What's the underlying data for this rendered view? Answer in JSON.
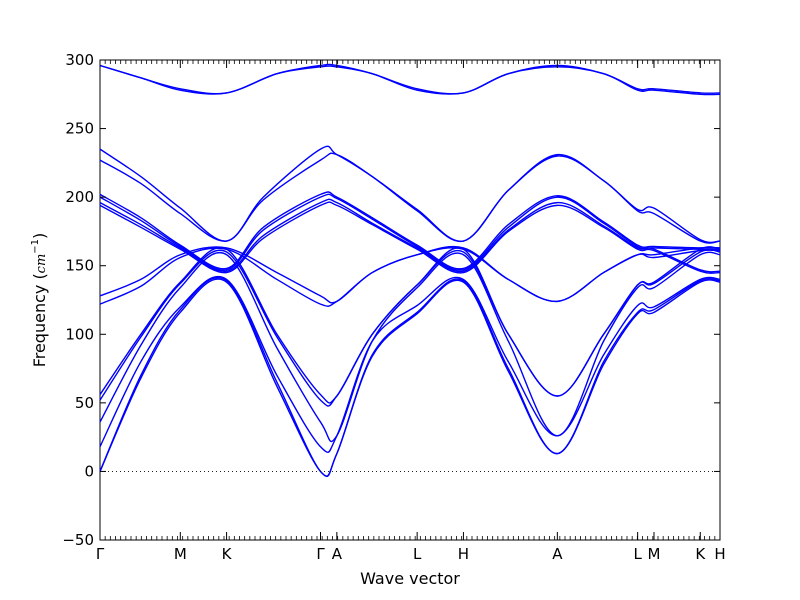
{
  "chart_data": {
    "type": "line",
    "xlabel": "Wave vector",
    "ylabel": {
      "main": "Frequency (",
      "unit": "cm",
      "exponent": "−1",
      "close": ")"
    },
    "ylim": [
      -50,
      300
    ],
    "yticks": [
      -50,
      0,
      50,
      100,
      150,
      200,
      250,
      300
    ],
    "ytick_labels": [
      "−50",
      "0",
      "50",
      "100",
      "150",
      "200",
      "250",
      "300"
    ],
    "x_range": [
      0,
      4.555
    ],
    "high_symmetry_points": [
      {
        "label": "Γ",
        "x": 0.0
      },
      {
        "label": "M",
        "x": 0.59
      },
      {
        "label": "K",
        "x": 0.93
      },
      {
        "label": "Γ",
        "x": 1.62
      },
      {
        "label": "A",
        "x": 1.74
      },
      {
        "label": "L",
        "x": 2.33
      },
      {
        "label": "H",
        "x": 2.67
      },
      {
        "label": "A",
        "x": 3.36
      },
      {
        "label": "L",
        "x": 3.95
      },
      {
        "label": "M",
        "x": 4.07
      },
      {
        "label": "K",
        "x": 4.41
      },
      {
        "label": "H",
        "x": 4.555
      }
    ],
    "zero_line": {
      "y": 0,
      "style": "dotted"
    },
    "grid": false,
    "line_color": "#0000ff",
    "series": [
      {
        "points": [
          [
            0,
            296
          ],
          [
            0.3,
            287
          ],
          [
            0.59,
            279
          ],
          [
            0.93,
            276
          ],
          [
            1.3,
            290
          ],
          [
            1.62,
            296
          ],
          [
            1.74,
            296
          ],
          [
            2.0,
            290
          ],
          [
            2.33,
            279
          ],
          [
            2.67,
            276
          ],
          [
            3.0,
            290
          ],
          [
            3.36,
            296
          ],
          [
            3.7,
            290
          ],
          [
            3.95,
            279
          ],
          [
            4.07,
            279
          ],
          [
            4.41,
            276
          ],
          [
            4.555,
            276
          ]
        ]
      },
      {
        "points": [
          [
            0,
            296
          ],
          [
            0.3,
            287
          ],
          [
            0.59,
            278
          ],
          [
            0.93,
            276
          ],
          [
            1.3,
            290
          ],
          [
            1.62,
            295
          ],
          [
            1.74,
            295
          ],
          [
            2.0,
            290
          ],
          [
            2.33,
            278
          ],
          [
            2.67,
            276
          ],
          [
            3.0,
            290
          ],
          [
            3.36,
            295
          ],
          [
            3.7,
            290
          ],
          [
            3.95,
            278
          ],
          [
            4.07,
            278
          ],
          [
            4.41,
            275
          ],
          [
            4.555,
            275
          ]
        ]
      },
      {
        "points": [
          [
            0,
            235
          ],
          [
            0.3,
            215
          ],
          [
            0.59,
            192
          ],
          [
            0.93,
            168
          ],
          [
            1.2,
            200
          ],
          [
            1.62,
            235
          ],
          [
            1.74,
            231
          ],
          [
            2.0,
            215
          ],
          [
            2.33,
            191
          ],
          [
            2.67,
            168
          ],
          [
            3.0,
            205
          ],
          [
            3.36,
            231
          ],
          [
            3.7,
            212
          ],
          [
            3.95,
            191
          ],
          [
            4.07,
            192
          ],
          [
            4.41,
            169
          ],
          [
            4.555,
            168
          ]
        ]
      },
      {
        "points": [
          [
            0,
            227
          ],
          [
            0.3,
            210
          ],
          [
            0.59,
            188
          ],
          [
            0.93,
            168
          ],
          [
            1.2,
            198
          ],
          [
            1.62,
            227
          ],
          [
            1.74,
            231
          ],
          [
            2.0,
            215
          ],
          [
            2.33,
            190
          ],
          [
            2.67,
            168
          ],
          [
            3.0,
            205
          ],
          [
            3.36,
            230
          ],
          [
            3.7,
            212
          ],
          [
            3.95,
            190
          ],
          [
            4.07,
            188
          ],
          [
            4.41,
            168
          ],
          [
            4.555,
            168
          ]
        ]
      },
      {
        "points": [
          [
            0,
            202
          ],
          [
            0.3,
            185
          ],
          [
            0.59,
            165
          ],
          [
            0.93,
            148
          ],
          [
            1.2,
            178
          ],
          [
            1.62,
            202
          ],
          [
            1.74,
            200
          ],
          [
            2.0,
            185
          ],
          [
            2.33,
            165
          ],
          [
            2.67,
            148
          ],
          [
            3.0,
            180
          ],
          [
            3.36,
            201
          ],
          [
            3.7,
            182
          ],
          [
            3.95,
            165
          ],
          [
            4.07,
            164
          ],
          [
            4.41,
            163
          ],
          [
            4.555,
            163
          ]
        ]
      },
      {
        "points": [
          [
            0,
            200
          ],
          [
            0.3,
            183
          ],
          [
            0.59,
            164
          ],
          [
            0.93,
            147
          ],
          [
            1.2,
            176
          ],
          [
            1.62,
            200
          ],
          [
            1.74,
            199
          ],
          [
            2.0,
            184
          ],
          [
            2.33,
            164
          ],
          [
            2.67,
            147
          ],
          [
            3.0,
            178
          ],
          [
            3.36,
            200
          ],
          [
            3.7,
            181
          ],
          [
            3.95,
            164
          ],
          [
            4.07,
            163
          ],
          [
            4.41,
            162
          ],
          [
            4.555,
            162
          ]
        ]
      },
      {
        "points": [
          [
            0,
            196
          ],
          [
            0.3,
            180
          ],
          [
            0.59,
            163
          ],
          [
            0.93,
            146
          ],
          [
            1.2,
            172
          ],
          [
            1.62,
            196
          ],
          [
            1.74,
            196
          ],
          [
            2.0,
            181
          ],
          [
            2.33,
            163
          ],
          [
            2.67,
            146
          ],
          [
            3.0,
            176
          ],
          [
            3.36,
            196
          ],
          [
            3.7,
            179
          ],
          [
            3.95,
            163
          ],
          [
            4.07,
            162
          ],
          [
            4.41,
            147
          ],
          [
            4.555,
            146
          ]
        ]
      },
      {
        "points": [
          [
            0,
            194
          ],
          [
            0.3,
            178
          ],
          [
            0.59,
            162
          ],
          [
            0.93,
            145
          ],
          [
            1.2,
            170
          ],
          [
            1.62,
            194
          ],
          [
            1.74,
            194
          ],
          [
            2.0,
            180
          ],
          [
            2.33,
            162
          ],
          [
            2.67,
            145
          ],
          [
            3.0,
            175
          ],
          [
            3.36,
            194
          ],
          [
            3.7,
            178
          ],
          [
            3.95,
            162
          ],
          [
            4.07,
            161
          ],
          [
            4.41,
            146
          ],
          [
            4.555,
            145
          ]
        ]
      },
      {
        "points": [
          [
            0,
            128
          ],
          [
            0.3,
            140
          ],
          [
            0.59,
            158
          ],
          [
            0.93,
            163
          ],
          [
            1.3,
            145
          ],
          [
            1.62,
            128
          ],
          [
            1.74,
            124
          ],
          [
            2.0,
            145
          ],
          [
            2.33,
            158
          ],
          [
            2.67,
            163
          ],
          [
            3.0,
            140
          ],
          [
            3.36,
            124
          ],
          [
            3.7,
            145
          ],
          [
            3.95,
            158
          ],
          [
            4.07,
            158
          ],
          [
            4.41,
            163
          ],
          [
            4.555,
            163
          ]
        ]
      },
      {
        "points": [
          [
            0,
            122
          ],
          [
            0.3,
            135
          ],
          [
            0.59,
            156
          ],
          [
            0.93,
            162
          ],
          [
            1.3,
            140
          ],
          [
            1.62,
            122
          ],
          [
            1.74,
            124
          ],
          [
            2.0,
            145
          ],
          [
            2.33,
            158
          ],
          [
            2.67,
            162
          ],
          [
            3.0,
            140
          ],
          [
            3.36,
            124
          ],
          [
            3.7,
            145
          ],
          [
            3.95,
            158
          ],
          [
            4.07,
            156
          ],
          [
            4.41,
            161
          ],
          [
            4.555,
            161
          ]
        ]
      },
      {
        "points": [
          [
            0,
            56
          ],
          [
            0.3,
            100
          ],
          [
            0.59,
            138
          ],
          [
            0.93,
            162
          ],
          [
            1.3,
            100
          ],
          [
            1.62,
            56
          ],
          [
            1.74,
            55
          ],
          [
            2.0,
            100
          ],
          [
            2.33,
            136
          ],
          [
            2.67,
            162
          ],
          [
            3.0,
            100
          ],
          [
            3.36,
            55
          ],
          [
            3.7,
            100
          ],
          [
            3.95,
            136
          ],
          [
            4.07,
            138
          ],
          [
            4.41,
            162
          ],
          [
            4.555,
            162
          ]
        ]
      },
      {
        "points": [
          [
            0,
            52
          ],
          [
            0.3,
            98
          ],
          [
            0.59,
            137
          ],
          [
            0.93,
            160
          ],
          [
            1.3,
            98
          ],
          [
            1.62,
            52
          ],
          [
            1.74,
            55
          ],
          [
            2.0,
            100
          ],
          [
            2.33,
            136
          ],
          [
            2.67,
            160
          ],
          [
            3.0,
            100
          ],
          [
            3.36,
            55
          ],
          [
            3.7,
            100
          ],
          [
            3.95,
            136
          ],
          [
            4.07,
            137
          ],
          [
            4.41,
            160
          ],
          [
            4.555,
            160
          ]
        ]
      },
      {
        "points": [
          [
            0,
            36
          ],
          [
            0.3,
            92
          ],
          [
            0.59,
            134
          ],
          [
            0.93,
            158
          ],
          [
            1.3,
            90
          ],
          [
            1.62,
            36
          ],
          [
            1.74,
            26
          ],
          [
            2.0,
            95
          ],
          [
            2.33,
            134
          ],
          [
            2.67,
            158
          ],
          [
            3.0,
            95
          ],
          [
            3.36,
            26
          ],
          [
            3.7,
            95
          ],
          [
            3.95,
            134
          ],
          [
            4.07,
            134
          ],
          [
            4.41,
            158
          ],
          [
            4.555,
            158
          ]
        ]
      },
      {
        "points": [
          [
            0,
            18
          ],
          [
            0.3,
            80
          ],
          [
            0.59,
            120
          ],
          [
            0.93,
            140
          ],
          [
            1.3,
            70
          ],
          [
            1.62,
            18
          ],
          [
            1.74,
            26
          ],
          [
            2.0,
            95
          ],
          [
            2.33,
            121
          ],
          [
            2.67,
            140
          ],
          [
            3.0,
            80
          ],
          [
            3.36,
            26
          ],
          [
            3.7,
            85
          ],
          [
            3.95,
            121
          ],
          [
            4.07,
            120
          ],
          [
            4.41,
            140
          ],
          [
            4.555,
            140
          ]
        ]
      },
      {
        "points": [
          [
            0,
            0
          ],
          [
            0.3,
            70
          ],
          [
            0.59,
            118
          ],
          [
            0.93,
            139
          ],
          [
            1.3,
            65
          ],
          [
            1.62,
            0
          ],
          [
            1.74,
            13
          ],
          [
            2.0,
            85
          ],
          [
            2.33,
            116
          ],
          [
            2.67,
            139
          ],
          [
            3.0,
            75
          ],
          [
            3.36,
            13
          ],
          [
            3.7,
            80
          ],
          [
            3.95,
            116
          ],
          [
            4.07,
            118
          ],
          [
            4.41,
            139
          ],
          [
            4.555,
            139
          ]
        ]
      },
      {
        "points": [
          [
            0,
            0
          ],
          [
            0.3,
            68
          ],
          [
            0.59,
            116
          ],
          [
            0.93,
            138
          ],
          [
            1.3,
            62
          ],
          [
            1.62,
            0
          ],
          [
            1.74,
            13
          ],
          [
            2.0,
            84
          ],
          [
            2.33,
            115
          ],
          [
            2.67,
            138
          ],
          [
            3.0,
            73
          ],
          [
            3.36,
            13
          ],
          [
            3.7,
            78
          ],
          [
            3.95,
            115
          ],
          [
            4.07,
            116
          ],
          [
            4.41,
            138
          ],
          [
            4.555,
            138
          ]
        ]
      }
    ]
  }
}
